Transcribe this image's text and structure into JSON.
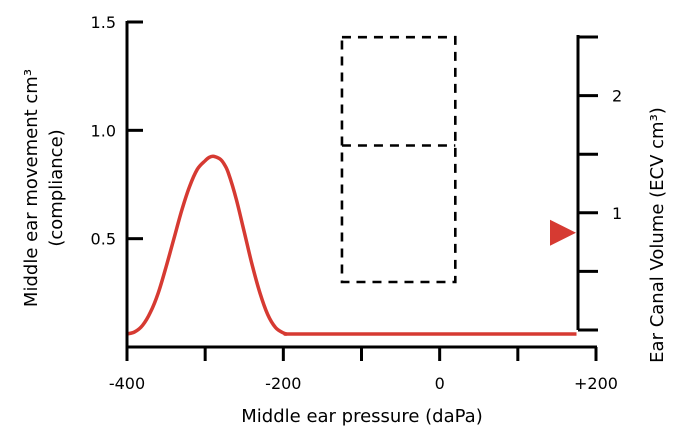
{
  "chart_data": {
    "type": "line",
    "xlabel": "Middle ear pressure (daPa)",
    "ylabel_left_line1": "Middle ear movement cm³",
    "ylabel_left_line2": "(compliance)",
    "ylabel_right": "Ear Canal Volume (ECV cm³)",
    "xlim": [
      -400,
      200
    ],
    "ylim": [
      0,
      1.5
    ],
    "x_ticks": [
      -400,
      -300,
      -200,
      -100,
      0,
      100,
      200
    ],
    "x_tick_labels": [
      "-400",
      "",
      "-200",
      "",
      "0",
      "",
      "+200"
    ],
    "y_ticks": [
      0.5,
      1.0,
      1.5
    ],
    "y_tick_labels": [
      "0.5",
      "1.0",
      "1.5"
    ],
    "right_axis": {
      "ylim": [
        0,
        2.5
      ],
      "ticks": [
        0.5,
        1,
        1.5,
        2,
        2.5
      ],
      "tick_labels": [
        "",
        "1",
        "",
        "2",
        ""
      ],
      "marker_value": 0.83,
      "marker_color": "#d63a32"
    },
    "series": [
      {
        "color": "#d63a32",
        "x": [
          -400,
          -390,
          -380,
          -370,
          -360,
          -350,
          -340,
          -330,
          -320,
          -310,
          -300,
          -295,
          -290,
          -285,
          -280,
          -275,
          -270,
          -260,
          -250,
          -240,
          -230,
          -220,
          -210,
          -200,
          -195,
          -190,
          -100,
          0,
          100,
          175
        ],
        "y": [
          0.06,
          0.07,
          0.1,
          0.16,
          0.25,
          0.37,
          0.5,
          0.63,
          0.74,
          0.82,
          0.86,
          0.875,
          0.88,
          0.875,
          0.865,
          0.84,
          0.8,
          0.68,
          0.53,
          0.38,
          0.25,
          0.15,
          0.09,
          0.065,
          0.06,
          0.06,
          0.06,
          0.06,
          0.06,
          0.06
        ]
      }
    ],
    "tolerance_box": {
      "x_range": [
        -125,
        20
      ],
      "y_range": [
        0.3,
        1.43
      ],
      "divider_y": 0.93,
      "style": "dashed"
    },
    "grid": false,
    "legend": "none"
  }
}
